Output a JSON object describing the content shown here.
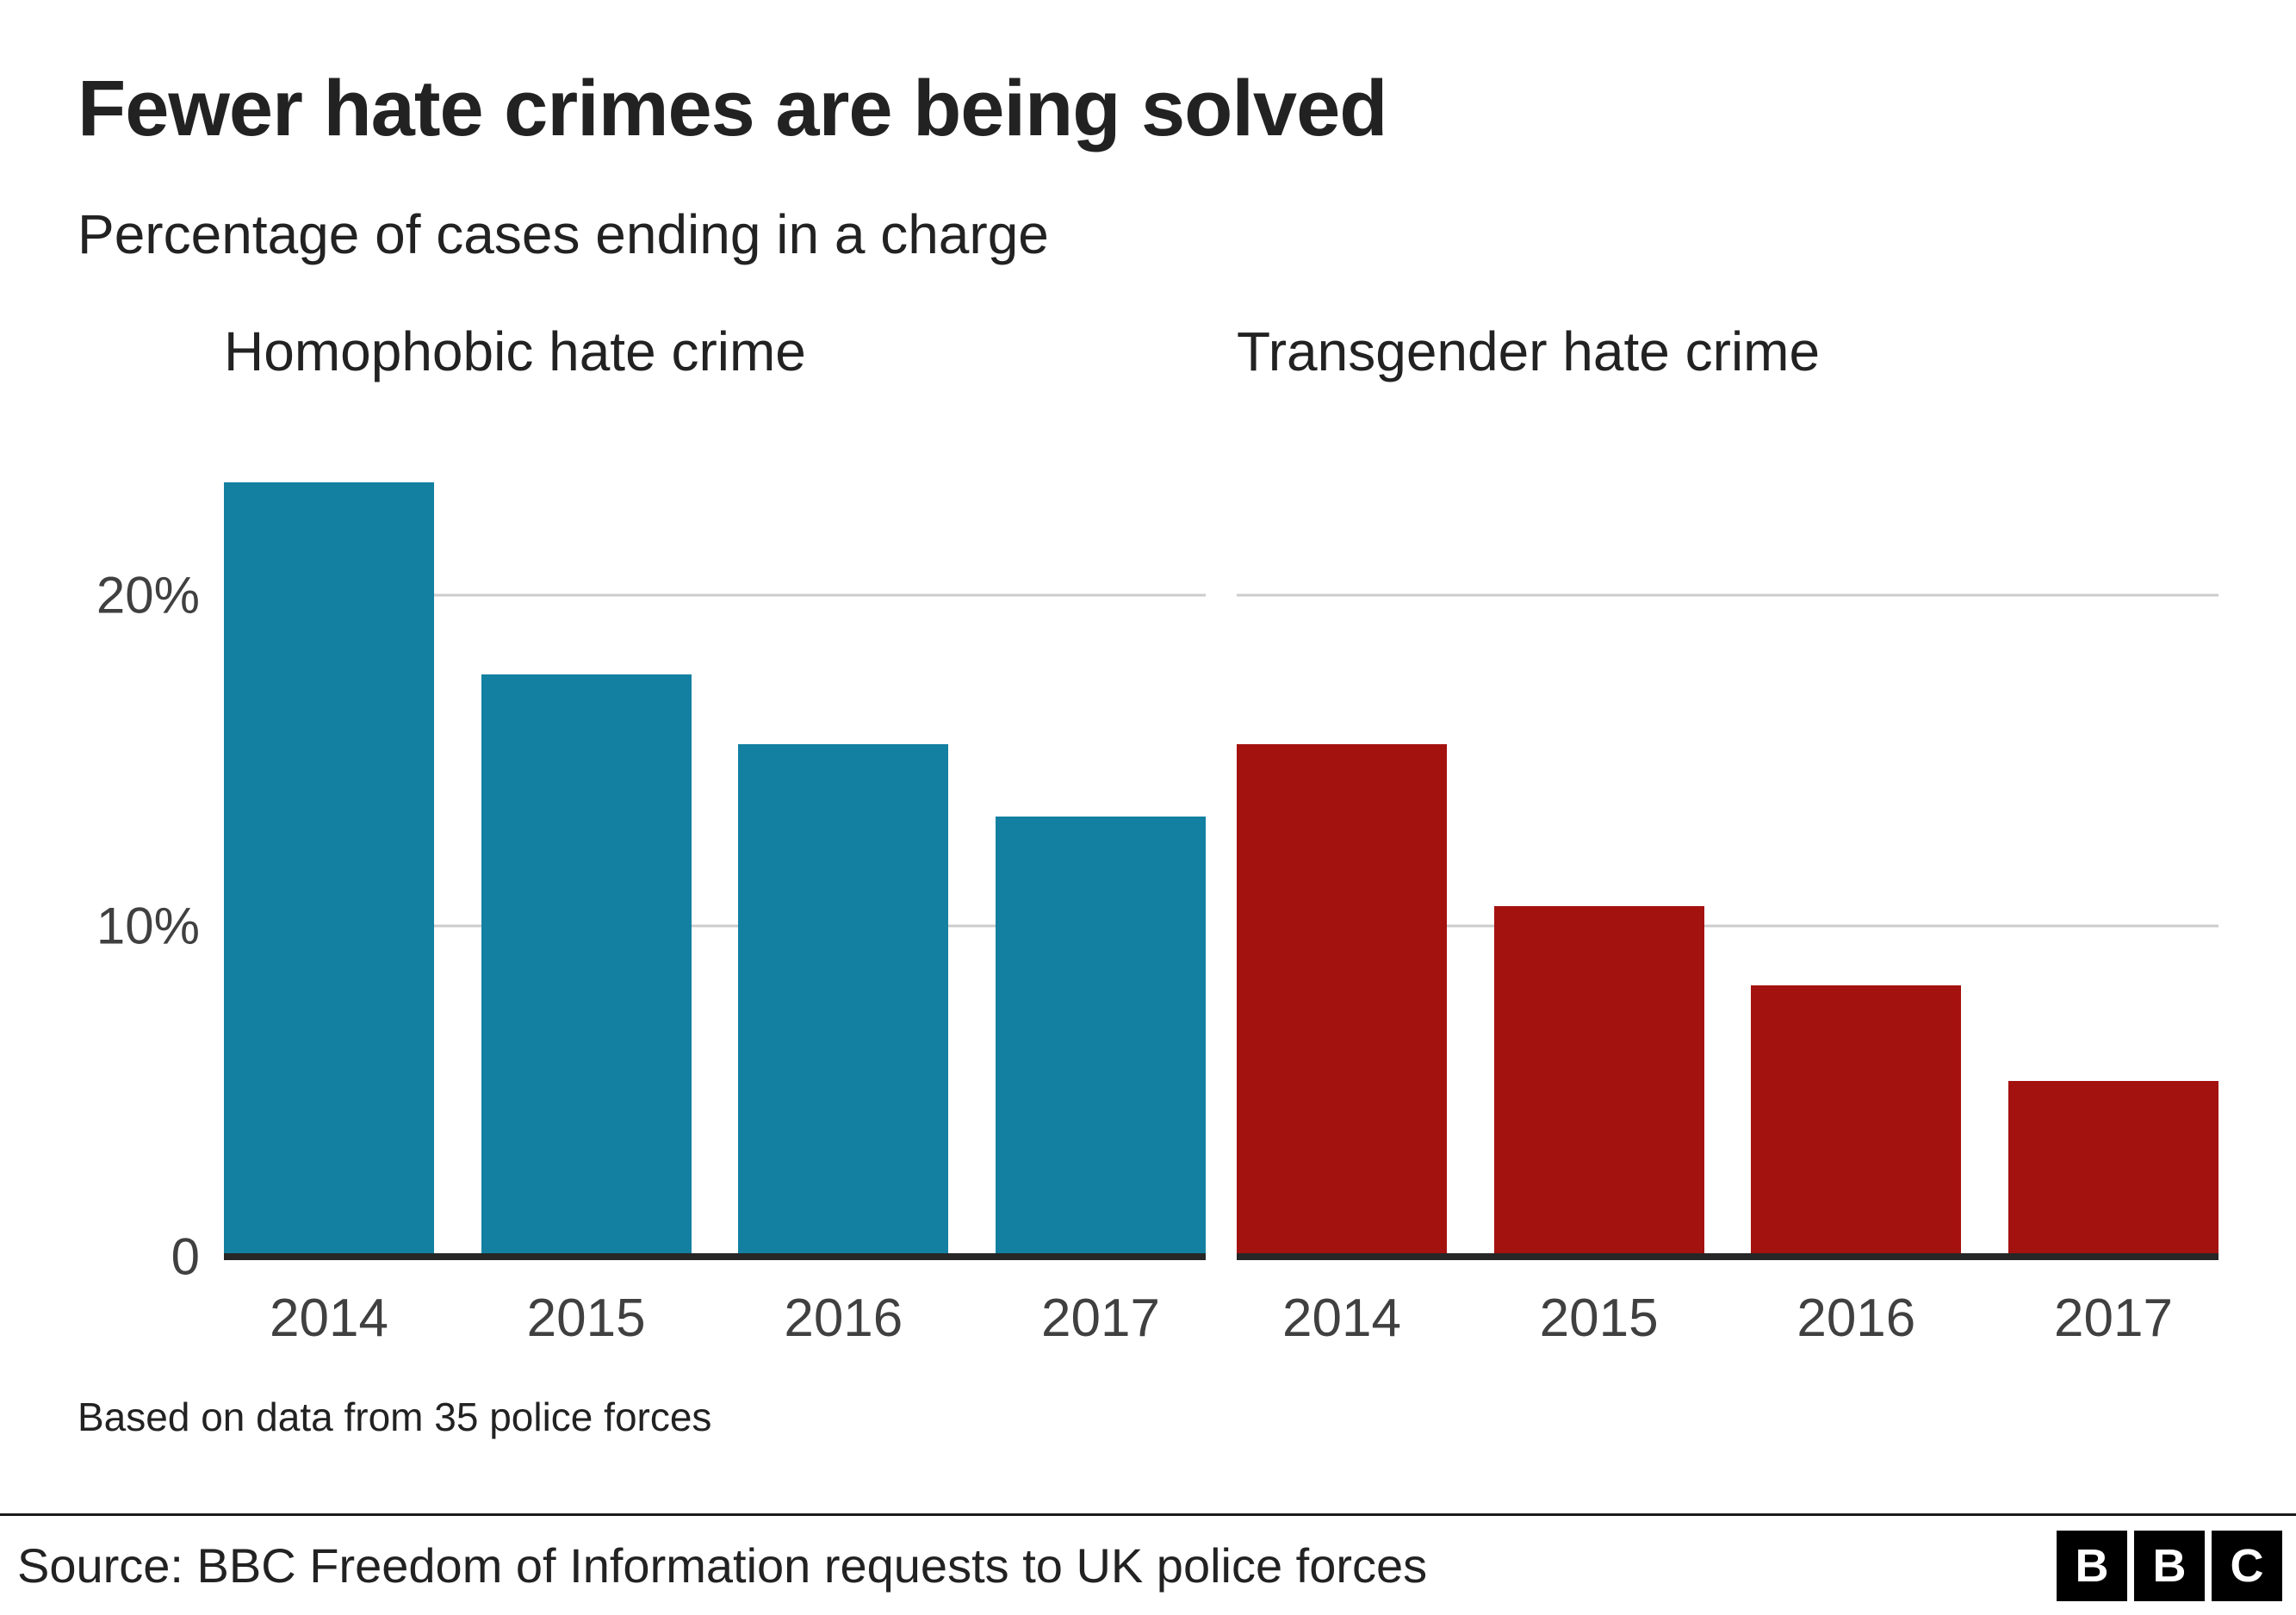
{
  "page": {
    "title": "Fewer hate crimes are being solved",
    "subtitle": "Percentage of cases ending in a charge",
    "footnote": "Based on data from 35 police forces",
    "source": "Source: BBC Freedom of Information requests to UK police forces",
    "logo_letters": [
      "B",
      "B",
      "C"
    ]
  },
  "chart_data": [
    {
      "type": "bar",
      "title": "Homophobic hate crime",
      "categories": [
        "2014",
        "2015",
        "2016",
        "2017"
      ],
      "values": [
        23.4,
        17.6,
        15.5,
        13.3
      ],
      "color": "#1380A1",
      "ylim": [
        0,
        25
      ],
      "grid": "horizontal",
      "yticks": [
        {
          "value": 0,
          "label": "0"
        },
        {
          "value": 10,
          "label": "10%"
        },
        {
          "value": 20,
          "label": "20%"
        }
      ]
    },
    {
      "type": "bar",
      "title": "Transgender hate crime",
      "categories": [
        "2014",
        "2015",
        "2016",
        "2017"
      ],
      "values": [
        15.5,
        10.6,
        8.2,
        5.3
      ],
      "color": "#A41210",
      "ylim": [
        0,
        25
      ],
      "grid": "horizontal",
      "yticks": [
        {
          "value": 0,
          "label": "0"
        },
        {
          "value": 10,
          "label": "10%"
        },
        {
          "value": 20,
          "label": "20%"
        }
      ]
    }
  ]
}
